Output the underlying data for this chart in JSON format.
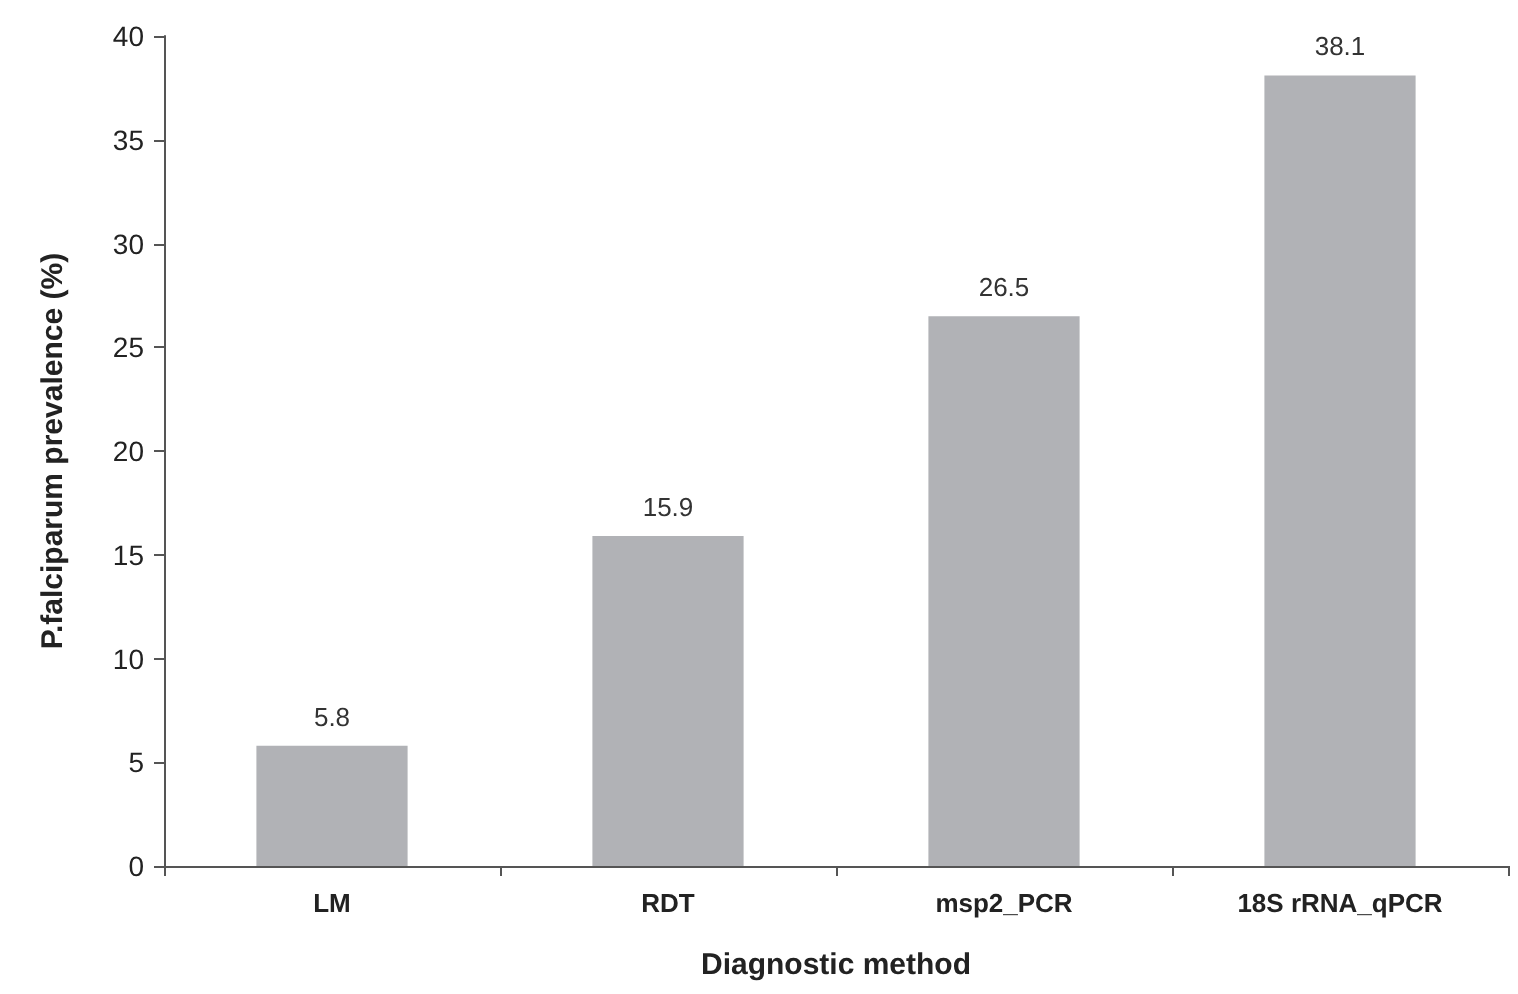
{
  "chart_data": {
    "type": "bar",
    "xlabel": "Diagnostic method",
    "ylabel": "P.falciparum prevalence (%)",
    "categories": [
      "LM",
      "RDT",
      "msp2_PCR",
      "18S rRNA_qPCR"
    ],
    "values": [
      5.8,
      15.9,
      26.5,
      38.1
    ],
    "color": "#b1b2b6",
    "ylim": [
      0,
      40
    ],
    "yticks": [
      0,
      5,
      10,
      15,
      20,
      25,
      30,
      35,
      40
    ],
    "grid": false,
    "data_labels": true
  }
}
